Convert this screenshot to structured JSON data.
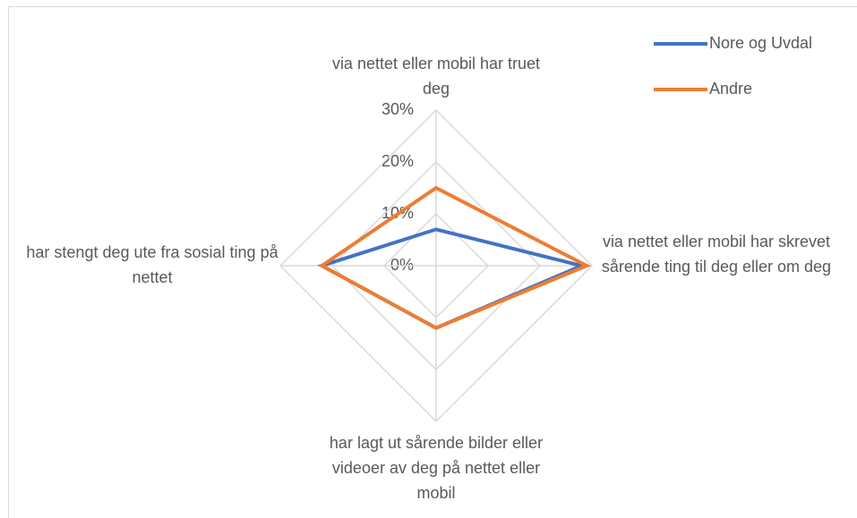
{
  "chart_data": {
    "type": "radar",
    "categories": [
      "via nettet eller mobil har truet deg",
      "via nettet eller mobil har skrevet sårende ting til deg eller om deg",
      "har lagt ut sårende bilder eller videoer av deg på nettet eller mobil",
      "har stengt deg ute fra sosial ting på nettet"
    ],
    "series": [
      {
        "name": "Nore og Uvdal",
        "color": "#4472c4",
        "values": [
          7,
          28,
          12,
          22
        ]
      },
      {
        "name": "Andre",
        "color": "#ed7d31",
        "values": [
          15,
          29,
          12,
          22
        ]
      }
    ],
    "ylim": [
      0,
      30
    ],
    "yticks": [
      {
        "value": 0,
        "label": "0%"
      },
      {
        "value": 10,
        "label": "10%"
      },
      {
        "value": 20,
        "label": "20%"
      },
      {
        "value": 30,
        "label": "30%"
      }
    ],
    "grid": true,
    "legend": "top-right"
  }
}
